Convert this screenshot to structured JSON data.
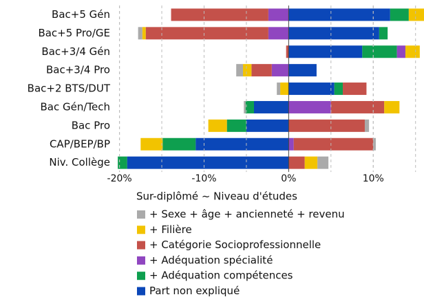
{
  "chart_data": {
    "type": "diverging_stacked_bar",
    "xlabel": "Sur-diplômé ~ Niveau d'études",
    "categories": [
      "Bac+5 Gén",
      "Bac+5 Pro/GE",
      "Bac+3/4 Gén",
      "Bac+3/4 Pro",
      "Bac+2 BTS/DUT",
      "Bac Gén/Tech",
      "Bac Pro",
      "CAP/BEP/BP",
      "Niv. Collège"
    ],
    "series": [
      {
        "name": "Part non expliqué",
        "color": "#0b47b8",
        "values": [
          12.0,
          10.7,
          8.7,
          3.3,
          5.4,
          -4.1,
          -5.0,
          -11.0,
          -19.1
        ]
      },
      {
        "name": "+ Adéquation compétences",
        "color": "#0e9f4f",
        "values": [
          2.2,
          1.0,
          4.1,
          null,
          1.0,
          -1.0,
          -2.3,
          -3.9,
          -1.1
        ]
      },
      {
        "name": "+ Adéquation spécialité",
        "color": "#9046c0",
        "values": [
          -2.4,
          -2.4,
          1.0,
          -2.0,
          null,
          5.0,
          null,
          0.6,
          null
        ]
      },
      {
        "name": "+ Catégorie Socioprofessionnelle",
        "color": "#c4514a",
        "values": [
          -11.5,
          -14.5,
          -0.3,
          -2.4,
          2.8,
          6.3,
          9.0,
          9.4,
          1.9
        ]
      },
      {
        "name": "+ Filière",
        "color": "#f2c300",
        "values": [
          2.0,
          -0.4,
          1.7,
          -1.0,
          -1.0,
          1.8,
          -2.2,
          -2.6,
          1.5
        ]
      },
      {
        "name": "+ Sexe + âge + ancienneté + revenu",
        "color": "#aaaaaa",
        "values": [
          null,
          -0.5,
          null,
          -0.8,
          -0.4,
          -0.2,
          0.5,
          0.3,
          1.3
        ]
      }
    ],
    "xlim": [
      -20.7,
      16
    ],
    "xticks": [
      {
        "value": -20,
        "label": "-20%"
      },
      {
        "value": -10,
        "label": "-10%"
      },
      {
        "value": 0,
        "label": "0%"
      },
      {
        "value": 10,
        "label": "10%"
      }
    ],
    "xgrid": [
      -20,
      -15,
      -10,
      -5,
      5,
      10,
      15
    ],
    "grid": true
  }
}
